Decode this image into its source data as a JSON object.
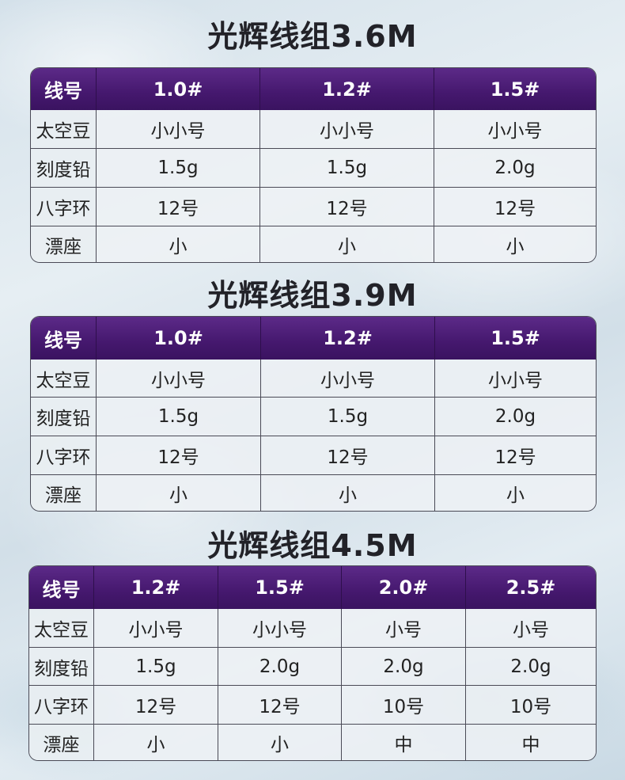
{
  "sections": [
    {
      "title": "光辉线组3.6M",
      "header": [
        "线号",
        "1.0#",
        "1.2#",
        "1.5#"
      ],
      "rows": [
        [
          "太空豆",
          "小小号",
          "小小号",
          "小小号"
        ],
        [
          "刻度铅",
          "1.5g",
          "1.5g",
          "2.0g"
        ],
        [
          "八字环",
          "12号",
          "12号",
          "12号"
        ],
        [
          "漂座",
          "小",
          "小",
          "小"
        ]
      ]
    },
    {
      "title": "光辉线组3.9M",
      "header": [
        "线号",
        "1.0#",
        "1.2#",
        "1.5#"
      ],
      "rows": [
        [
          "太空豆",
          "小小号",
          "小小号",
          "小小号"
        ],
        [
          "刻度铅",
          "1.5g",
          "1.5g",
          "2.0g"
        ],
        [
          "八字环",
          "12号",
          "12号",
          "12号"
        ],
        [
          "漂座",
          "小",
          "小",
          "小"
        ]
      ]
    },
    {
      "title": "光辉线组4.5M",
      "header": [
        "线号",
        "1.2#",
        "1.5#",
        "2.0#",
        "2.5#"
      ],
      "rows": [
        [
          "太空豆",
          "小小号",
          "小小号",
          "小号",
          "小号"
        ],
        [
          "刻度铅",
          "1.5g",
          "2.0g",
          "2.0g",
          "2.0g"
        ],
        [
          "八字环",
          "12号",
          "12号",
          "10号",
          "10号"
        ],
        [
          "漂座",
          "小",
          "小",
          "中",
          "中"
        ]
      ]
    }
  ],
  "colors": {
    "header_bg": "#45186e",
    "header_text": "#ffffff",
    "cell_bg": "#edf1f4",
    "title_text": "#222228"
  }
}
